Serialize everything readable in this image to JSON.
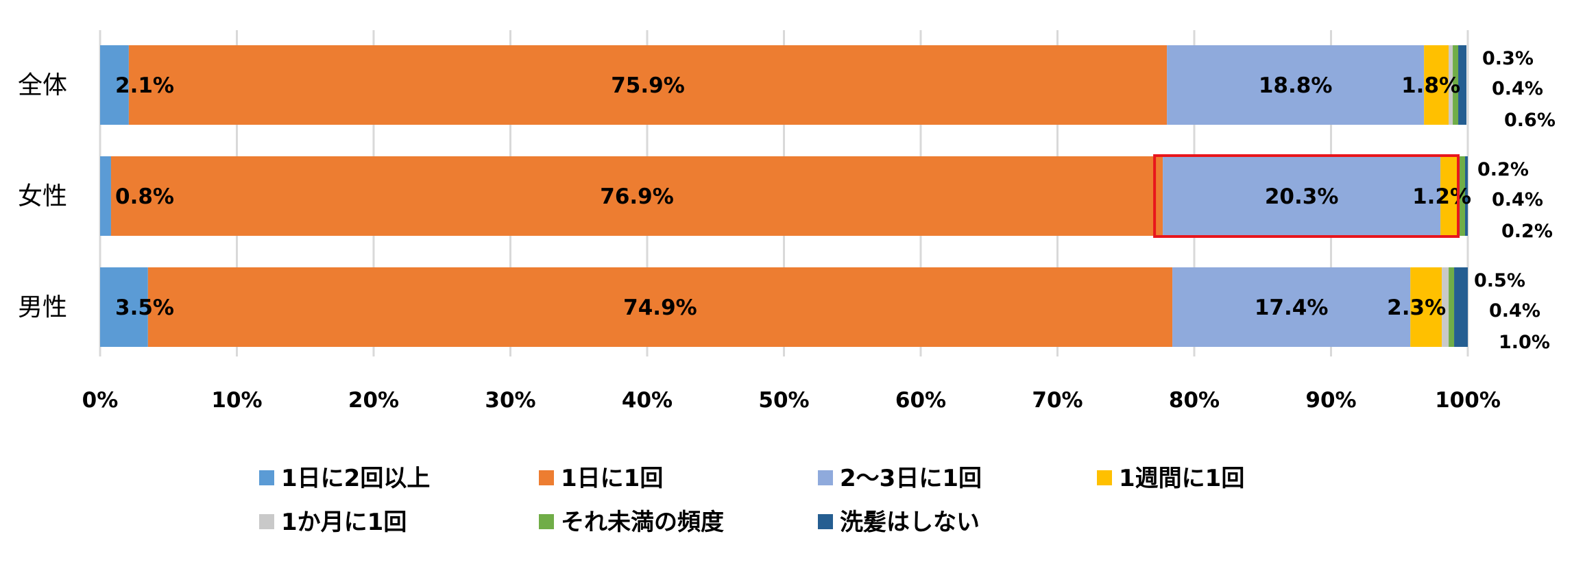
{
  "chart_data": {
    "type": "bar",
    "orientation": "horizontal",
    "stacked": true,
    "categories": [
      "全体",
      "女性",
      "男性"
    ],
    "xlim": [
      0,
      100
    ],
    "x_ticks": [
      "0%",
      "10%",
      "20%",
      "30%",
      "40%",
      "50%",
      "60%",
      "70%",
      "80%",
      "90%",
      "100%"
    ],
    "grid": true,
    "legend_position": "bottom",
    "series": [
      {
        "name": "1日に2回以上",
        "color": "#5b9bd5",
        "values": [
          2.1,
          0.8,
          3.5
        ],
        "labels": [
          "2.1%",
          "0.8%",
          "3.5%"
        ]
      },
      {
        "name": "1日に1回",
        "color": "#ed7d31",
        "values": [
          75.9,
          76.9,
          74.9
        ],
        "labels": [
          "75.9%",
          "76.9%",
          "74.9%"
        ]
      },
      {
        "name": "2〜3日に1回",
        "color": "#8faadc",
        "values": [
          18.8,
          20.3,
          17.4
        ],
        "labels": [
          "18.8%",
          "20.3%",
          "17.4%"
        ]
      },
      {
        "name": "1週間に1回",
        "color": "#ffc000",
        "values": [
          1.8,
          1.2,
          2.3
        ],
        "labels": [
          "1.8%",
          "1.2%",
          "2.3%"
        ]
      },
      {
        "name": "1か月に1回",
        "color": "#c9c9c9",
        "values": [
          0.3,
          0.2,
          0.5
        ],
        "labels": [
          "0.3%",
          "0.2%",
          "0.5%"
        ]
      },
      {
        "name": "それ未満の頻度",
        "color": "#70ad47",
        "values": [
          0.4,
          0.4,
          0.4
        ],
        "labels": [
          "0.4%",
          "0.4%",
          "0.4%"
        ]
      },
      {
        "name": "洗髪はしない",
        "color": "#255e91",
        "values": [
          0.6,
          0.2,
          1.0
        ],
        "labels": [
          "0.6%",
          "0.2%",
          "1.0%"
        ]
      }
    ],
    "highlight": {
      "category": "女性",
      "series": [
        "2〜3日に1回",
        "1週間に1回"
      ],
      "color": "#e8161c"
    }
  }
}
